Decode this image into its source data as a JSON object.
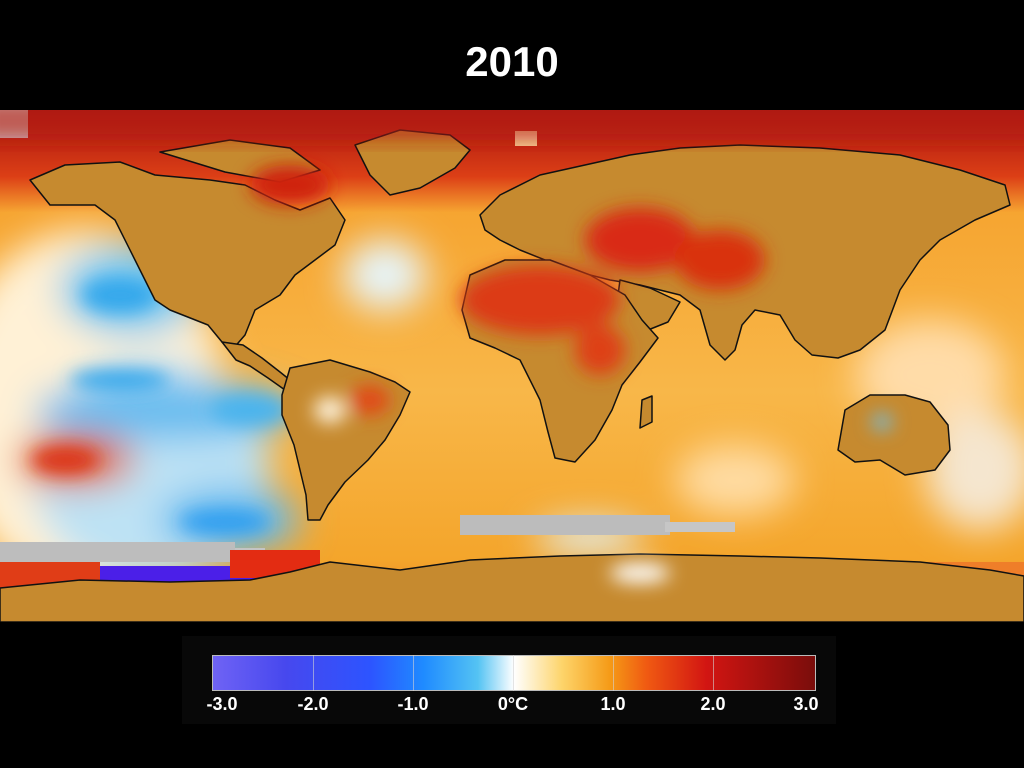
{
  "title": "2010",
  "map": {
    "name": "global surface temperature anomaly map",
    "projection": "equirectangular",
    "colors": {
      "ocean_warm": "#f6a531",
      "ocean_neutral": "#fff1d6",
      "ocean_cool": "#55b8ef",
      "land": "#c68a2f",
      "arctic_hot": "#b31212",
      "sahara_hot": "#da3414",
      "antarctic_cold": "#4b1fe8",
      "missing_data": "#bdbdbd",
      "coastline": "#111111"
    }
  },
  "legend": {
    "colorbar_colors": [
      "#6f63f5",
      "#2d54ff",
      "#54c3f3",
      "#ffffff",
      "#f59a16",
      "#d21512",
      "#7a0d0b"
    ],
    "ticks": [
      "-3.0",
      "-2.0",
      "-1.0",
      "0°C",
      "1.0",
      "2.0",
      "3.0"
    ],
    "range": [
      -3.0,
      3.0
    ],
    "unit": "°C"
  }
}
